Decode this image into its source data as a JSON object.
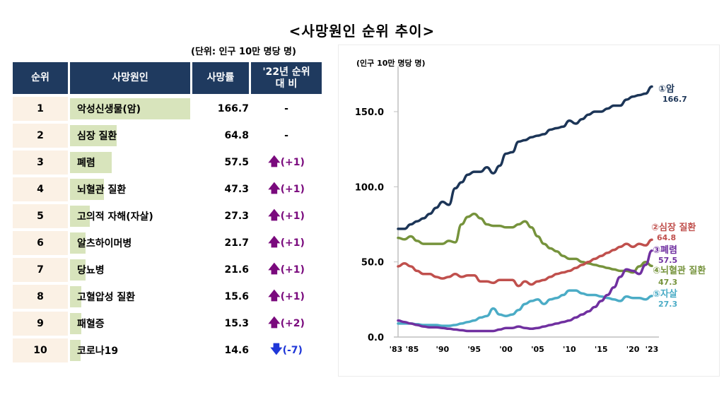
{
  "page": {
    "title": "<사망원인 순위 추이>",
    "unit_note": "(단위: 인구 10만 명당 명)"
  },
  "table": {
    "headers": [
      "순위",
      "사망원인",
      "사망률",
      "'22년 순위",
      "대 비"
    ],
    "rows": [
      {
        "rank": "1",
        "cause": "악성신생물(암)",
        "rate": "166.7",
        "rate_value": 166.7,
        "change": "-",
        "direction": "none"
      },
      {
        "rank": "2",
        "cause": "심장 질환",
        "rate": "64.8",
        "rate_value": 64.8,
        "change": "-",
        "direction": "none"
      },
      {
        "rank": "3",
        "cause": "폐렴",
        "rate": "57.5",
        "rate_value": 57.5,
        "change": "(+1)",
        "direction": "up"
      },
      {
        "rank": "4",
        "cause": "뇌혈관 질환",
        "rate": "47.3",
        "rate_value": 47.3,
        "change": "(+1)",
        "direction": "up"
      },
      {
        "rank": "5",
        "cause": "고의적 자해(자살)",
        "rate": "27.3",
        "rate_value": 27.3,
        "change": "(+1)",
        "direction": "up"
      },
      {
        "rank": "6",
        "cause": "알츠하이머병",
        "rate": "21.7",
        "rate_value": 21.7,
        "change": "(+1)",
        "direction": "up"
      },
      {
        "rank": "7",
        "cause": "당뇨병",
        "rate": "21.6",
        "rate_value": 21.6,
        "change": "(+1)",
        "direction": "up"
      },
      {
        "rank": "8",
        "cause": "고혈압성 질환",
        "rate": "15.6",
        "rate_value": 15.6,
        "change": "(+1)",
        "direction": "up"
      },
      {
        "rank": "9",
        "cause": "패혈증",
        "rate": "15.3",
        "rate_value": 15.3,
        "change": "(+2)",
        "direction": "up"
      },
      {
        "rank": "10",
        "cause": "코로나19",
        "rate": "14.6",
        "rate_value": 14.6,
        "change": "(-7)",
        "direction": "down"
      }
    ],
    "icons": {
      "up": "arrow-up-icon",
      "down": "arrow-down-icon"
    },
    "colors": {
      "header_bg": "#1f3a5f",
      "rank_bg": "#fbf1e5",
      "bar": "#d8e4bc",
      "up": "#7a0a7d",
      "down": "#1f37d8"
    }
  },
  "chart_data": {
    "type": "line",
    "title": "",
    "ylabel": "(인구 10만 명당 명)",
    "xlabel": "",
    "ylim": [
      0,
      175
    ],
    "xlim": [
      1983,
      2023
    ],
    "yticks": [
      0,
      50,
      100,
      150
    ],
    "ytick_labels": [
      "0.0",
      "50.0",
      "100.0",
      "150.0"
    ],
    "xticks": [
      1983,
      1985,
      1990,
      1995,
      2000,
      2005,
      2010,
      2015,
      2020,
      2023
    ],
    "xtick_labels": [
      "'83",
      "'85",
      "'90",
      "'95",
      "'00",
      "'05",
      "'10",
      "'15",
      "'20",
      "'23"
    ],
    "grid": false,
    "x": [
      1983,
      1984,
      1985,
      1986,
      1987,
      1988,
      1989,
      1990,
      1991,
      1992,
      1993,
      1994,
      1995,
      1996,
      1997,
      1998,
      1999,
      2000,
      2001,
      2002,
      2003,
      2004,
      2005,
      2006,
      2007,
      2008,
      2009,
      2010,
      2011,
      2012,
      2013,
      2014,
      2015,
      2016,
      2017,
      2018,
      2019,
      2020,
      2021,
      2022,
      2023
    ],
    "series": [
      {
        "name": "①암",
        "end_label": "166.7",
        "color": "#1c3557",
        "values": [
          72,
          72,
          75,
          77,
          79,
          82,
          86,
          90,
          88,
          99,
          103,
          108,
          110,
          110,
          113,
          109,
          114,
          122,
          123,
          130,
          131,
          133,
          134,
          135,
          138,
          139,
          140,
          144,
          142,
          145,
          148,
          150,
          150,
          152,
          154,
          154,
          158,
          160,
          161,
          162,
          166.7
        ]
      },
      {
        "name": "②심장 질환",
        "end_label": "64.8",
        "color": "#c0504d",
        "values": [
          47,
          49,
          47,
          44,
          42,
          42,
          40,
          39,
          40,
          42,
          40,
          41,
          41,
          37,
          37,
          36,
          38,
          38,
          38,
          34,
          37,
          35,
          37,
          38,
          40,
          42,
          43,
          44,
          46,
          48,
          50,
          52,
          54,
          56,
          58,
          60,
          62,
          60,
          62,
          61,
          64.8
        ]
      },
      {
        "name": "③폐렴",
        "end_label": "57.5",
        "color": "#7030a0",
        "values": [
          11,
          10,
          9,
          8,
          7,
          6.5,
          6.5,
          6,
          5.5,
          5,
          4.5,
          4,
          4,
          4,
          4,
          4,
          5,
          6,
          6,
          7,
          6,
          5.5,
          6,
          7,
          8,
          9,
          10,
          11,
          13,
          15,
          17,
          20,
          24,
          28,
          33,
          40,
          45,
          44,
          42,
          48,
          57.5
        ]
      },
      {
        "name": "④뇌혈관 질환",
        "end_label": "47.3",
        "color": "#76933c",
        "values": [
          66,
          65,
          67,
          64,
          62,
          62,
          62,
          62,
          64,
          63,
          75,
          80,
          82,
          79,
          75,
          74,
          74,
          73,
          73,
          75,
          77,
          73,
          67,
          62,
          59,
          57,
          54,
          52,
          52,
          50,
          49,
          48,
          47,
          46,
          45,
          44,
          44,
          43,
          47,
          50,
          47.3
        ]
      },
      {
        "name": "⑤자살",
        "end_label": "27.3",
        "color": "#4bacc6",
        "values": [
          9,
          9,
          9,
          8.5,
          8,
          8,
          8,
          7.5,
          7.5,
          8,
          9,
          10,
          11,
          13,
          14,
          19,
          15,
          14,
          15,
          18,
          22,
          24,
          25,
          22,
          25,
          26,
          28,
          31,
          31,
          29,
          28,
          28,
          27,
          26,
          25,
          24,
          27,
          26,
          26,
          25,
          27.3
        ]
      }
    ]
  }
}
